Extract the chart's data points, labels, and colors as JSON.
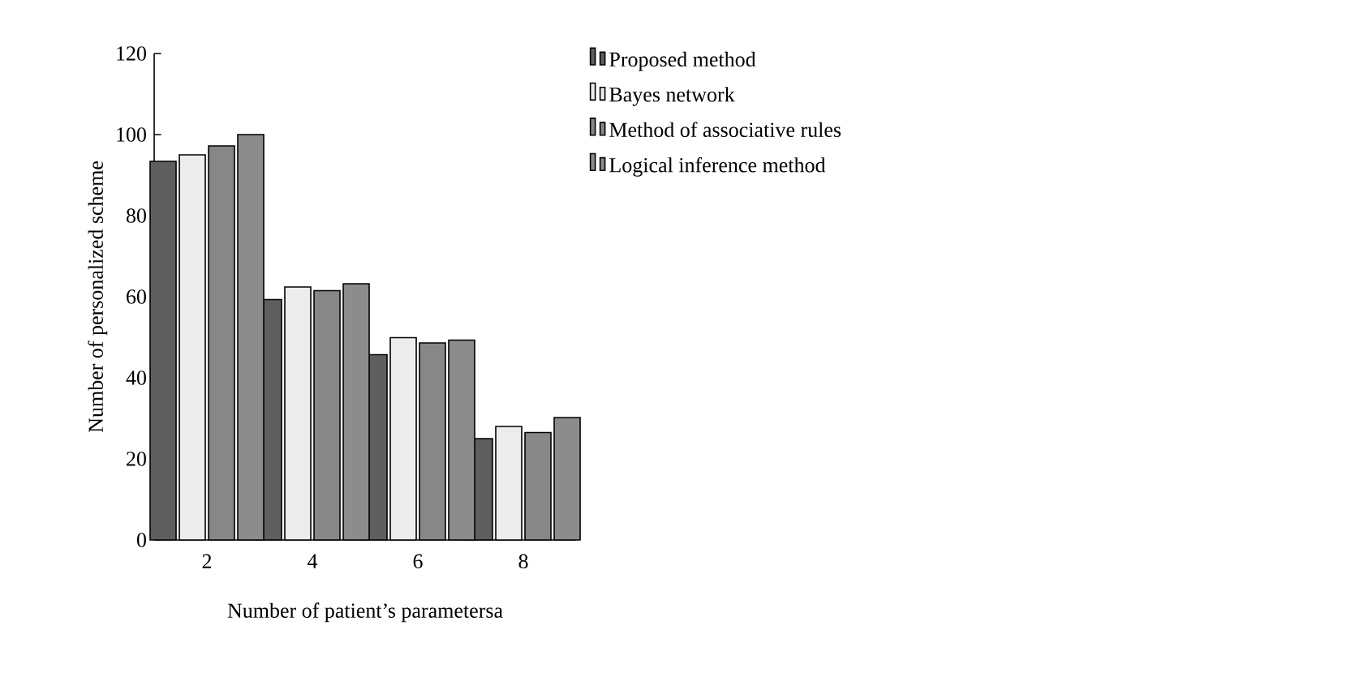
{
  "chart_data": {
    "type": "bar",
    "xlabel": "Number of patient’s parametersa",
    "ylabel": "Number of personalized scheme",
    "categories": [
      "2",
      "4",
      "6",
      "8"
    ],
    "series": [
      {
        "name": "Proposed method",
        "color": "#5f5f5f",
        "values": [
          93.4,
          59.3,
          45.7,
          25
        ]
      },
      {
        "name": "Bayes network",
        "color": "#ececec",
        "values": [
          95,
          62.4,
          49.9,
          28
        ]
      },
      {
        "name": "Method of associative rules",
        "color": "#878787",
        "values": [
          97.2,
          61.5,
          48.6,
          26.5
        ]
      },
      {
        "name": "Logical inference method",
        "color": "#8c8c8c",
        "values": [
          100,
          63.2,
          49.3,
          30.2
        ]
      }
    ],
    "ylim": [
      0,
      120
    ],
    "yticks": [
      0,
      20,
      40,
      60,
      80,
      100,
      120
    ],
    "legend": "right",
    "grid": false
  }
}
